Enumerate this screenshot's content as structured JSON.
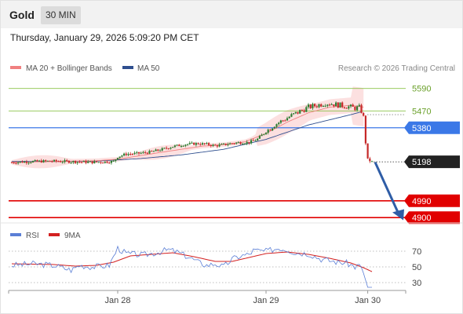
{
  "header": {
    "instrument": "Gold",
    "timeframe_button": "30 MIN",
    "timestamp": "Thursday, January 29, 2026 5:09:20 PM CET"
  },
  "legend": {
    "ma20_bb": "MA 20 + Bollinger Bands",
    "ma50": "MA 50",
    "credit": "Research © 2026 Trading Central",
    "rsi": "RSI",
    "rsi_ma": "9MA"
  },
  "colors": {
    "candle_up": "#2e7d32",
    "candle_down": "#c62828",
    "ma20": "#f08080",
    "bollinger_fill": "#fbdada",
    "ma50": "#2f4f8f",
    "target_green": "#8bc34a",
    "pivot_blue": "#3b78e7",
    "support_red": "#e10000",
    "price_box": "#222222",
    "arrow": "#2f5da6",
    "rsi_line": "#5b7fd6",
    "rsi_ma_line": "#d32020"
  },
  "chart_data": [
    {
      "type": "candlestick",
      "ylim": [
        4880,
        5660
      ],
      "x_ticks": [
        "Jan 28",
        "Jan 29",
        "Jan 30"
      ],
      "levels": [
        {
          "name": "resistance-2",
          "value": 5590,
          "label": "5590",
          "style": "green-line"
        },
        {
          "name": "resistance-1",
          "value": 5470,
          "label": "5470",
          "style": "green-line"
        },
        {
          "name": "pivot",
          "value": 5380,
          "label": "5380",
          "style": "blue-box"
        },
        {
          "name": "support-1",
          "value": 4990,
          "label": "4990",
          "style": "red-box"
        },
        {
          "name": "support-2",
          "value": 4900,
          "label": "4900",
          "style": "red-box"
        }
      ],
      "last_price": {
        "value": 5198,
        "label": "5198"
      },
      "anchors": [
        [
          0,
          5195
        ],
        [
          10,
          5200
        ],
        [
          18,
          5202
        ],
        [
          26,
          5200
        ],
        [
          32,
          5198
        ],
        [
          38,
          5196
        ],
        [
          44,
          5198
        ],
        [
          48,
          5200
        ],
        [
          50,
          5225
        ],
        [
          54,
          5240
        ],
        [
          58,
          5242
        ],
        [
          64,
          5248
        ],
        [
          70,
          5262
        ],
        [
          76,
          5280
        ],
        [
          82,
          5292
        ],
        [
          88,
          5296
        ],
        [
          92,
          5292
        ],
        [
          96,
          5284
        ],
        [
          100,
          5290
        ],
        [
          106,
          5300
        ],
        [
          112,
          5302
        ],
        [
          116,
          5320
        ],
        [
          120,
          5360
        ],
        [
          124,
          5396
        ],
        [
          128,
          5420
        ],
        [
          132,
          5445
        ],
        [
          136,
          5468
        ],
        [
          140,
          5490
        ],
        [
          144,
          5500
        ],
        [
          148,
          5512
        ],
        [
          150,
          5510
        ],
        [
          154,
          5502
        ],
        [
          158,
          5495
        ],
        [
          162,
          5485
        ],
        [
          164,
          5488
        ],
        [
          166,
          5440
        ],
        [
          167,
          5300
        ],
        [
          168,
          5210
        ],
        [
          170,
          5198
        ]
      ],
      "candle_count": 171,
      "x_tick_index": [
        50,
        120,
        168
      ],
      "ma50": [
        [
          0,
          5200
        ],
        [
          20,
          5200
        ],
        [
          40,
          5202
        ],
        [
          60,
          5215
        ],
        [
          80,
          5235
        ],
        [
          100,
          5265
        ],
        [
          120,
          5318
        ],
        [
          140,
          5395
        ],
        [
          160,
          5450
        ],
        [
          165,
          5465
        ]
      ],
      "ma20": [
        [
          0,
          5195
        ],
        [
          20,
          5200
        ],
        [
          40,
          5204
        ],
        [
          50,
          5212
        ],
        [
          60,
          5230
        ],
        [
          70,
          5248
        ],
        [
          80,
          5265
        ],
        [
          90,
          5282
        ],
        [
          100,
          5290
        ],
        [
          110,
          5305
        ],
        [
          120,
          5350
        ],
        [
          130,
          5410
        ],
        [
          140,
          5460
        ],
        [
          150,
          5490
        ],
        [
          160,
          5500
        ],
        [
          166,
          5490
        ]
      ]
    },
    {
      "type": "line",
      "title": "RSI",
      "ylim": [
        20,
        80
      ],
      "y_ticks": [
        70,
        50,
        30
      ],
      "rsi": [
        [
          0,
          52
        ],
        [
          10,
          54
        ],
        [
          20,
          52
        ],
        [
          28,
          46
        ],
        [
          32,
          52
        ],
        [
          38,
          50
        ],
        [
          46,
          52
        ],
        [
          50,
          74
        ],
        [
          54,
          67
        ],
        [
          58,
          66
        ],
        [
          62,
          65
        ],
        [
          68,
          68
        ],
        [
          74,
          72
        ],
        [
          78,
          69
        ],
        [
          84,
          62
        ],
        [
          88,
          56
        ],
        [
          92,
          52
        ],
        [
          96,
          54
        ],
        [
          100,
          50
        ],
        [
          104,
          60
        ],
        [
          108,
          64
        ],
        [
          112,
          66
        ],
        [
          114,
          71
        ],
        [
          120,
          70
        ],
        [
          126,
          74
        ],
        [
          130,
          72
        ],
        [
          134,
          68
        ],
        [
          140,
          67
        ],
        [
          146,
          60
        ],
        [
          150,
          58
        ],
        [
          154,
          56
        ],
        [
          158,
          55
        ],
        [
          162,
          50
        ],
        [
          164,
          52
        ],
        [
          166,
          42
        ],
        [
          168,
          24
        ],
        [
          170,
          24
        ]
      ],
      "rsi_ma": [
        [
          0,
          54
        ],
        [
          20,
          53
        ],
        [
          30,
          51
        ],
        [
          40,
          52
        ],
        [
          48,
          56
        ],
        [
          56,
          64
        ],
        [
          66,
          66
        ],
        [
          76,
          68
        ],
        [
          86,
          63
        ],
        [
          96,
          57
        ],
        [
          104,
          57
        ],
        [
          112,
          62
        ],
        [
          120,
          67
        ],
        [
          130,
          69
        ],
        [
          140,
          66
        ],
        [
          150,
          61
        ],
        [
          160,
          55
        ],
        [
          166,
          49
        ],
        [
          170,
          44
        ]
      ]
    }
  ]
}
